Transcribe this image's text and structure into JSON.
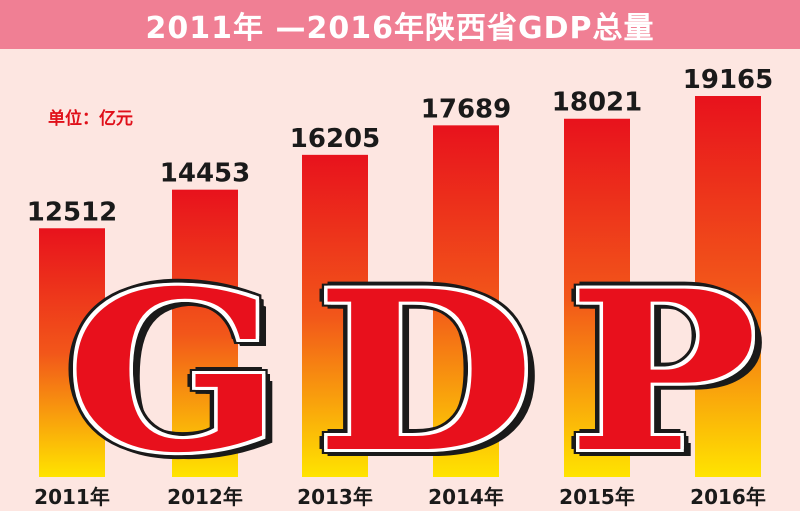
{
  "title": "2011年 —2016年陕西省GDP总量",
  "unit": "单位：亿元",
  "overlay_letters": [
    "G",
    "D",
    "P"
  ],
  "colors": {
    "background": "#fde6e1",
    "title_bar": "#f07f94",
    "bar_top": "#e8121c",
    "bar_mid": "#f2561a",
    "bar_bottom": "#ffe400",
    "text": "#1a1a1a",
    "unit_text": "#e0101a"
  },
  "chart_data": {
    "type": "bar",
    "title": "2011年 —2016年陕西省GDP总量",
    "ylabel": "单位：亿元",
    "categories": [
      "2011年",
      "2012年",
      "2013年",
      "2014年",
      "2015年",
      "2016年"
    ],
    "values": [
      12512,
      14453,
      16205,
      17689,
      18021,
      19165
    ],
    "value_labels": [
      "12512",
      "14453",
      "16205",
      "17689",
      "18021",
      "19165"
    ],
    "ylim": [
      0,
      21000
    ],
    "grid": false,
    "legend": "none"
  }
}
